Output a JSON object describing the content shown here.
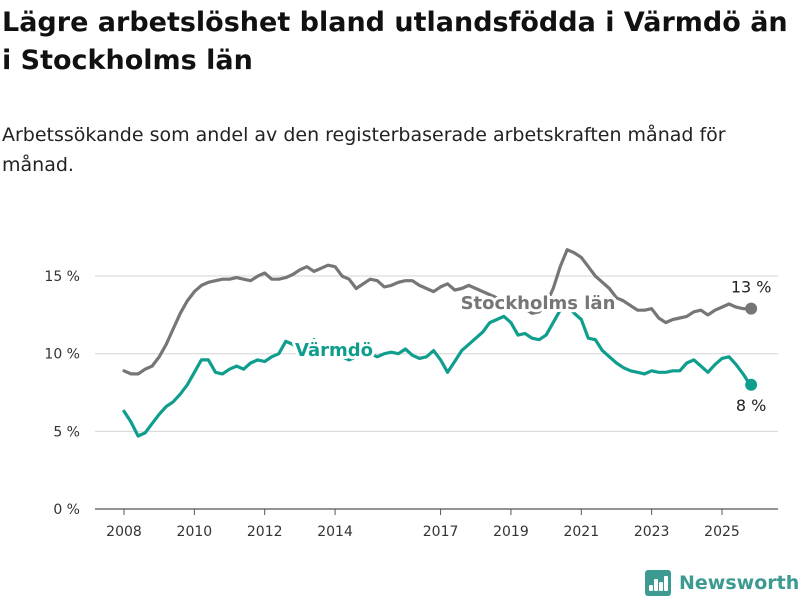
{
  "header": {
    "title": "Lägre arbetslöshet bland utlandsfödda i Värmdö än i Stockholms län",
    "subtitle": "Arbetssökande som andel av den registerbaserade arbetskraften månad för månad."
  },
  "brand": {
    "name": "Newsworthy",
    "icon": "bar-chart-icon",
    "color": "#3d9a91"
  },
  "chart_data": {
    "type": "line",
    "ylim": [
      0,
      17
    ],
    "y_ticks": [
      0,
      5,
      10,
      15
    ],
    "y_tick_labels": [
      "0 %",
      "5 %",
      "10 %",
      "15 %"
    ],
    "x_ticks": [
      2008,
      2010,
      2012,
      2014,
      2017,
      2019,
      2021,
      2023,
      2025
    ],
    "x_tick_labels": [
      "2008",
      "2010",
      "2012",
      "2014",
      "2017",
      "2019",
      "2021",
      "2023",
      "2025"
    ],
    "xlim": [
      2007.3,
      2026.9
    ],
    "grid": true,
    "series": [
      {
        "name": "Stockholms län",
        "color": "#767676",
        "end_label": "13 %",
        "points": [
          [
            2008.0,
            8.9
          ],
          [
            2008.2,
            8.7
          ],
          [
            2008.4,
            8.7
          ],
          [
            2008.6,
            9.0
          ],
          [
            2008.8,
            9.2
          ],
          [
            2009.0,
            9.8
          ],
          [
            2009.2,
            10.6
          ],
          [
            2009.4,
            11.6
          ],
          [
            2009.6,
            12.6
          ],
          [
            2009.8,
            13.4
          ],
          [
            2010.0,
            14.0
          ],
          [
            2010.2,
            14.4
          ],
          [
            2010.4,
            14.6
          ],
          [
            2010.6,
            14.7
          ],
          [
            2010.8,
            14.8
          ],
          [
            2011.0,
            14.8
          ],
          [
            2011.2,
            14.9
          ],
          [
            2011.4,
            14.8
          ],
          [
            2011.6,
            14.7
          ],
          [
            2011.8,
            15.0
          ],
          [
            2012.0,
            15.2
          ],
          [
            2012.2,
            14.8
          ],
          [
            2012.4,
            14.8
          ],
          [
            2012.6,
            14.9
          ],
          [
            2012.8,
            15.1
          ],
          [
            2013.0,
            15.4
          ],
          [
            2013.2,
            15.6
          ],
          [
            2013.4,
            15.3
          ],
          [
            2013.6,
            15.5
          ],
          [
            2013.8,
            15.7
          ],
          [
            2014.0,
            15.6
          ],
          [
            2014.2,
            15.0
          ],
          [
            2014.4,
            14.8
          ],
          [
            2014.6,
            14.2
          ],
          [
            2014.8,
            14.5
          ],
          [
            2015.0,
            14.8
          ],
          [
            2015.2,
            14.7
          ],
          [
            2015.4,
            14.3
          ],
          [
            2015.6,
            14.4
          ],
          [
            2015.8,
            14.6
          ],
          [
            2016.0,
            14.7
          ],
          [
            2016.2,
            14.7
          ],
          [
            2016.4,
            14.4
          ],
          [
            2016.6,
            14.2
          ],
          [
            2016.8,
            14.0
          ],
          [
            2017.0,
            14.3
          ],
          [
            2017.2,
            14.5
          ],
          [
            2017.4,
            14.1
          ],
          [
            2017.6,
            14.2
          ],
          [
            2017.8,
            14.4
          ],
          [
            2018.0,
            14.2
          ],
          [
            2018.2,
            14.0
          ],
          [
            2018.6,
            13.6
          ],
          [
            2018.8,
            13.2
          ],
          [
            2019.0,
            13.2
          ],
          [
            2019.2,
            13.0
          ],
          [
            2019.4,
            12.9
          ],
          [
            2019.6,
            12.6
          ],
          [
            2019.8,
            12.7
          ],
          [
            2020.0,
            13.2
          ],
          [
            2020.2,
            14.2
          ],
          [
            2020.4,
            15.6
          ],
          [
            2020.6,
            16.7
          ],
          [
            2020.8,
            16.5
          ],
          [
            2021.0,
            16.2
          ],
          [
            2021.2,
            15.6
          ],
          [
            2021.4,
            15.0
          ],
          [
            2021.6,
            14.6
          ],
          [
            2021.8,
            14.2
          ],
          [
            2022.0,
            13.6
          ],
          [
            2022.2,
            13.4
          ],
          [
            2022.4,
            13.1
          ],
          [
            2022.6,
            12.8
          ],
          [
            2022.8,
            12.8
          ],
          [
            2023.0,
            12.9
          ],
          [
            2023.2,
            12.3
          ],
          [
            2023.4,
            12.0
          ],
          [
            2023.6,
            12.2
          ],
          [
            2023.8,
            12.3
          ],
          [
            2024.0,
            12.4
          ],
          [
            2024.2,
            12.7
          ],
          [
            2024.4,
            12.8
          ],
          [
            2024.6,
            12.5
          ],
          [
            2024.8,
            12.8
          ],
          [
            2025.0,
            13.0
          ],
          [
            2025.2,
            13.2
          ],
          [
            2025.4,
            13.0
          ],
          [
            2025.6,
            12.9
          ],
          [
            2025.8,
            12.9
          ]
        ]
      },
      {
        "name": "Värmdö",
        "color": "#0f9e8d",
        "end_label": "8 %",
        "points": [
          [
            2008.0,
            6.3
          ],
          [
            2008.2,
            5.6
          ],
          [
            2008.4,
            4.7
          ],
          [
            2008.6,
            4.9
          ],
          [
            2008.8,
            5.5
          ],
          [
            2009.0,
            6.1
          ],
          [
            2009.2,
            6.6
          ],
          [
            2009.4,
            6.9
          ],
          [
            2009.6,
            7.4
          ],
          [
            2009.8,
            8.0
          ],
          [
            2010.0,
            8.8
          ],
          [
            2010.2,
            9.6
          ],
          [
            2010.4,
            9.6
          ],
          [
            2010.6,
            8.8
          ],
          [
            2010.8,
            8.7
          ],
          [
            2011.0,
            9.0
          ],
          [
            2011.2,
            9.2
          ],
          [
            2011.4,
            9.0
          ],
          [
            2011.6,
            9.4
          ],
          [
            2011.8,
            9.6
          ],
          [
            2012.0,
            9.5
          ],
          [
            2012.2,
            9.8
          ],
          [
            2012.4,
            10.0
          ],
          [
            2012.6,
            10.8
          ],
          [
            2012.8,
            10.6
          ],
          [
            2013.0,
            10.2
          ],
          [
            2013.2,
            10.6
          ],
          [
            2013.4,
            10.9
          ],
          [
            2013.6,
            10.4
          ],
          [
            2013.8,
            10.1
          ],
          [
            2014.0,
            9.9
          ],
          [
            2014.2,
            9.8
          ],
          [
            2014.4,
            9.6
          ],
          [
            2014.6,
            9.8
          ],
          [
            2014.8,
            10.1
          ],
          [
            2015.0,
            10.0
          ],
          [
            2015.2,
            9.8
          ],
          [
            2015.4,
            10.0
          ],
          [
            2015.6,
            10.1
          ],
          [
            2015.8,
            10.0
          ],
          [
            2016.0,
            10.3
          ],
          [
            2016.2,
            9.9
          ],
          [
            2016.4,
            9.7
          ],
          [
            2016.6,
            9.8
          ],
          [
            2016.8,
            10.2
          ],
          [
            2017.0,
            9.6
          ],
          [
            2017.2,
            8.8
          ],
          [
            2017.4,
            9.5
          ],
          [
            2017.6,
            10.2
          ],
          [
            2017.8,
            10.6
          ],
          [
            2018.0,
            11.0
          ],
          [
            2018.2,
            11.4
          ],
          [
            2018.4,
            12.0
          ],
          [
            2018.6,
            12.2
          ],
          [
            2018.8,
            12.4
          ],
          [
            2019.0,
            12.0
          ],
          [
            2019.2,
            11.2
          ],
          [
            2019.4,
            11.3
          ],
          [
            2019.6,
            11.0
          ],
          [
            2019.8,
            10.9
          ],
          [
            2020.0,
            11.2
          ],
          [
            2020.2,
            12.0
          ],
          [
            2020.4,
            12.8
          ],
          [
            2020.6,
            13.1
          ],
          [
            2020.8,
            12.6
          ],
          [
            2021.0,
            12.2
          ],
          [
            2021.2,
            11.0
          ],
          [
            2021.4,
            10.9
          ],
          [
            2021.6,
            10.2
          ],
          [
            2021.8,
            9.8
          ],
          [
            2022.0,
            9.4
          ],
          [
            2022.2,
            9.1
          ],
          [
            2022.4,
            8.9
          ],
          [
            2022.6,
            8.8
          ],
          [
            2022.8,
            8.7
          ],
          [
            2023.0,
            8.9
          ],
          [
            2023.2,
            8.8
          ],
          [
            2023.4,
            8.8
          ],
          [
            2023.6,
            8.9
          ],
          [
            2023.8,
            8.9
          ],
          [
            2024.0,
            9.4
          ],
          [
            2024.2,
            9.6
          ],
          [
            2024.4,
            9.2
          ],
          [
            2024.6,
            8.8
          ],
          [
            2024.8,
            9.3
          ],
          [
            2025.0,
            9.7
          ],
          [
            2025.2,
            9.8
          ],
          [
            2025.4,
            9.3
          ],
          [
            2025.6,
            8.7
          ],
          [
            2025.8,
            8.0
          ]
        ]
      }
    ]
  }
}
